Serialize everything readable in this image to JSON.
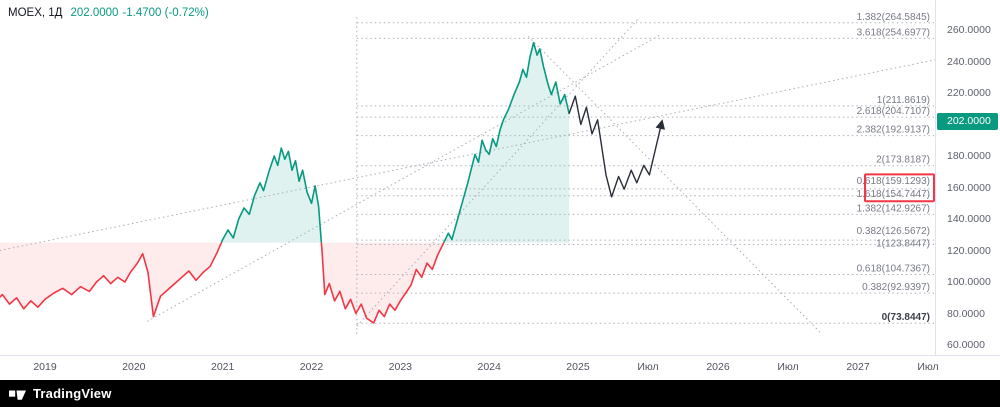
{
  "legend": {
    "symbol": "MOEX, 1Д",
    "price": "202.0000",
    "change": "-1.4700 (-0.72%)"
  },
  "footer": {
    "brand": "TradingView"
  },
  "colors": {
    "up": "#089981",
    "down": "#f23645",
    "fill_up": "rgba(8,153,129,0.13)",
    "fill_down": "rgba(244,84,95,0.11)",
    "projection": "#2a2e39",
    "fib_line": "#aeb1bb",
    "trend_line": "#a9adb8",
    "label": "#787b86",
    "badge": "#089981",
    "box": "#f23645",
    "axis_border": "#e0e3eb",
    "footer_bg": "#000000"
  },
  "chart_data": {
    "type": "line",
    "symbol": "MOEX",
    "timeframe": "1Д",
    "title": "MOEX daily price with Fibonacci levels and projected path",
    "ylim": [
      55,
      272
    ],
    "baseline": 125,
    "grid": false,
    "price_series": [
      [
        2018.45,
        88
      ],
      [
        2018.52,
        92
      ],
      [
        2018.6,
        86
      ],
      [
        2018.68,
        90
      ],
      [
        2018.76,
        83
      ],
      [
        2018.84,
        88
      ],
      [
        2018.92,
        84
      ],
      [
        2019.0,
        89
      ],
      [
        2019.1,
        93
      ],
      [
        2019.2,
        96
      ],
      [
        2019.3,
        92
      ],
      [
        2019.4,
        97
      ],
      [
        2019.5,
        94
      ],
      [
        2019.58,
        100
      ],
      [
        2019.66,
        104
      ],
      [
        2019.74,
        99
      ],
      [
        2019.82,
        103
      ],
      [
        2019.9,
        100
      ],
      [
        2019.96,
        106
      ],
      [
        2020.04,
        112
      ],
      [
        2020.1,
        118
      ],
      [
        2020.16,
        106
      ],
      [
        2020.22,
        78
      ],
      [
        2020.3,
        91
      ],
      [
        2020.38,
        95
      ],
      [
        2020.46,
        99
      ],
      [
        2020.54,
        103
      ],
      [
        2020.62,
        107
      ],
      [
        2020.7,
        101
      ],
      [
        2020.78,
        106
      ],
      [
        2020.86,
        110
      ],
      [
        2020.94,
        119
      ],
      [
        2021.0,
        127
      ],
      [
        2021.06,
        133
      ],
      [
        2021.12,
        128
      ],
      [
        2021.18,
        140
      ],
      [
        2021.24,
        147
      ],
      [
        2021.3,
        143
      ],
      [
        2021.36,
        155
      ],
      [
        2021.42,
        163
      ],
      [
        2021.46,
        158
      ],
      [
        2021.52,
        170
      ],
      [
        2021.58,
        180
      ],
      [
        2021.62,
        174
      ],
      [
        2021.66,
        185
      ],
      [
        2021.7,
        178
      ],
      [
        2021.74,
        183
      ],
      [
        2021.78,
        171
      ],
      [
        2021.82,
        177
      ],
      [
        2021.86,
        164
      ],
      [
        2021.9,
        171
      ],
      [
        2021.95,
        157
      ],
      [
        2022.0,
        150
      ],
      [
        2022.04,
        161
      ],
      [
        2022.08,
        148
      ],
      [
        2022.12,
        118
      ],
      [
        2022.15,
        92
      ],
      [
        2022.2,
        99
      ],
      [
        2022.26,
        88
      ],
      [
        2022.32,
        94
      ],
      [
        2022.38,
        83
      ],
      [
        2022.44,
        89
      ],
      [
        2022.5,
        80
      ],
      [
        2022.56,
        86
      ],
      [
        2022.62,
        77
      ],
      [
        2022.7,
        74
      ],
      [
        2022.76,
        82
      ],
      [
        2022.82,
        78
      ],
      [
        2022.88,
        86
      ],
      [
        2022.94,
        82
      ],
      [
        2023.0,
        88
      ],
      [
        2023.06,
        93
      ],
      [
        2023.12,
        98
      ],
      [
        2023.18,
        108
      ],
      [
        2023.24,
        103
      ],
      [
        2023.3,
        112
      ],
      [
        2023.36,
        108
      ],
      [
        2023.42,
        117
      ],
      [
        2023.48,
        124
      ],
      [
        2023.54,
        131
      ],
      [
        2023.58,
        127
      ],
      [
        2023.64,
        139
      ],
      [
        2023.7,
        151
      ],
      [
        2023.76,
        163
      ],
      [
        2023.8,
        172
      ],
      [
        2023.84,
        181
      ],
      [
        2023.88,
        176
      ],
      [
        2023.92,
        190
      ],
      [
        2023.96,
        184
      ],
      [
        2024.0,
        181
      ],
      [
        2024.04,
        191
      ],
      [
        2024.08,
        186
      ],
      [
        2024.12,
        196
      ],
      [
        2024.16,
        203
      ],
      [
        2024.22,
        210
      ],
      [
        2024.28,
        219
      ],
      [
        2024.34,
        227
      ],
      [
        2024.38,
        235
      ],
      [
        2024.42,
        230
      ],
      [
        2024.46,
        243
      ],
      [
        2024.5,
        252
      ],
      [
        2024.54,
        244
      ],
      [
        2024.57,
        248
      ],
      [
        2024.61,
        237
      ],
      [
        2024.66,
        226
      ],
      [
        2024.7,
        219
      ],
      [
        2024.75,
        227
      ],
      [
        2024.8,
        213
      ],
      [
        2024.85,
        219
      ],
      [
        2024.9,
        207
      ]
    ],
    "projection_series": [
      [
        2024.9,
        207
      ],
      [
        2024.97,
        218
      ],
      [
        2025.02,
        200
      ],
      [
        2025.06,
        211
      ],
      [
        2025.1,
        194
      ],
      [
        2025.14,
        203
      ],
      [
        2025.2,
        168
      ],
      [
        2025.24,
        154
      ],
      [
        2025.29,
        167
      ],
      [
        2025.33,
        159
      ],
      [
        2025.38,
        171
      ],
      [
        2025.42,
        163
      ],
      [
        2025.47,
        174
      ],
      [
        2025.51,
        168
      ],
      [
        2025.6,
        202
      ]
    ],
    "trend_lines": [
      {
        "from": [
          2018.49,
          120
        ],
        "to": [
          2027.55,
          241
        ]
      },
      {
        "from": [
          2020.15,
          75
        ],
        "to": [
          2025.59,
          257
        ]
      },
      {
        "from": [
          2022.51,
          72
        ],
        "to": [
          2025.44,
          268
        ]
      },
      {
        "from": [
          2024.44,
          256
        ],
        "to": [
          2026.73,
          68
        ]
      }
    ],
    "fib_x_start_year": 2022.51,
    "fib_levels": [
      {
        "label": "1.382(264.5845)",
        "price": 264.5845
      },
      {
        "label": "3.618(254.6977)",
        "price": 254.6977
      },
      {
        "label": "1(211.8619)",
        "price": 211.8619
      },
      {
        "label": "2.618(204.7107)",
        "price": 204.7107
      },
      {
        "label": "2.382(192.9137)",
        "price": 192.9137
      },
      {
        "label": "2(173.8187)",
        "price": 173.8187
      },
      {
        "label": "0.618(159.1293)",
        "price": 159.1293,
        "dy": -2,
        "boxed": true
      },
      {
        "label": "1.618(154.7447)",
        "price": 154.7447,
        "dy": 4,
        "boxed": true
      },
      {
        "label": "1.382(142.9267)",
        "price": 142.9267
      },
      {
        "label": "0.382(126.5672)",
        "price": 126.5672,
        "dy": -3
      },
      {
        "label": "1(123.8447)",
        "price": 123.8447,
        "dy": 5
      },
      {
        "label": "0.618(104.7367)",
        "price": 104.7367
      },
      {
        "label": "0.382(92.9397)",
        "price": 92.9397
      },
      {
        "label": "0(73.8447)",
        "price": 73.8447,
        "bold": true
      }
    ],
    "current_price": {
      "label": "202.0000",
      "price": 202
    },
    "y_axis_ticks": [
      {
        "label": "260.0000",
        "price": 260
      },
      {
        "label": "240.0000",
        "price": 240
      },
      {
        "label": "220.0000",
        "price": 220
      },
      {
        "label": "180.0000",
        "price": 180
      },
      {
        "label": "160.0000",
        "price": 160
      },
      {
        "label": "140.0000",
        "price": 140
      },
      {
        "label": "120.0000",
        "price": 120
      },
      {
        "label": "100.0000",
        "price": 100
      },
      {
        "label": "80.0000",
        "price": 80
      },
      {
        "label": "60.0000",
        "price": 60
      }
    ],
    "x_axis_ticks": [
      {
        "label": "2019",
        "t": 2019
      },
      {
        "label": "2020",
        "t": 2020
      },
      {
        "label": "2021",
        "t": 2021
      },
      {
        "label": "2022",
        "t": 2022
      },
      {
        "label": "2023",
        "t": 2023
      },
      {
        "label": "2024",
        "t": 2024
      },
      {
        "label": "2025",
        "t": 2025
      },
      {
        "label": "Июл",
        "t": 2025.5
      },
      {
        "label": "2026",
        "t": 2026
      },
      {
        "label": "Июл",
        "t": 2026.5
      },
      {
        "label": "2027",
        "t": 2027
      },
      {
        "label": "Июл",
        "t": 2027.5
      }
    ]
  }
}
